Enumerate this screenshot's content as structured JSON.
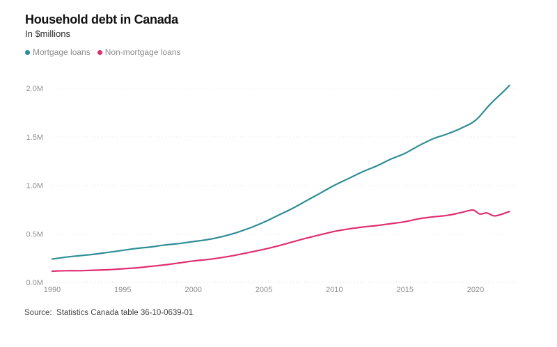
{
  "header": {
    "title": "Household debt in Canada",
    "subtitle": "In $millions"
  },
  "source": {
    "text": "Source:  Statistics Canada table 36-10-0639-01"
  },
  "chart_data": {
    "type": "line",
    "title": "Household debt in Canada",
    "subtitle": "In $millions",
    "ylabel": "$millions (shown as M)",
    "xlabel": "",
    "grid": "horizontal-dotted",
    "legend_position": "top-left",
    "xlim": [
      1989.8,
      2023.0
    ],
    "ylim": [
      0,
      2.15
    ],
    "x_ticks": [
      1990,
      1995,
      2000,
      2005,
      2010,
      2015,
      2020
    ],
    "y_tick_labels": [
      "0.0M",
      "0.5M",
      "1.0M",
      "1.5M",
      "2.0M"
    ],
    "y_tick_values": [
      0,
      0.5,
      1.0,
      1.5,
      2.0
    ],
    "axis_label_color": "#8f8f8f",
    "gridline_color": "#e7e7e3",
    "baseline_color": "#ddd4c6",
    "series": [
      {
        "name": "Mortgage loans",
        "color": "#2e8d96",
        "x": [
          1990,
          1991,
          1992,
          1993,
          1994,
          1995,
          1996,
          1997,
          1998,
          1999,
          2000,
          2001,
          2002,
          2003,
          2004,
          2005,
          2006,
          2007,
          2008,
          2009,
          2010,
          2011,
          2012,
          2013,
          2014,
          2015,
          2016,
          2017,
          2018,
          2019,
          2020,
          2021,
          2022,
          2022.4
        ],
        "values": [
          0.24,
          0.26,
          0.275,
          0.29,
          0.31,
          0.33,
          0.35,
          0.365,
          0.385,
          0.4,
          0.42,
          0.44,
          0.47,
          0.51,
          0.56,
          0.62,
          0.69,
          0.76,
          0.84,
          0.92,
          1.0,
          1.07,
          1.14,
          1.2,
          1.27,
          1.33,
          1.41,
          1.48,
          1.53,
          1.59,
          1.67,
          1.83,
          1.97,
          2.03
        ]
      },
      {
        "name": "Non-mortgage loans",
        "color": "#e02d71",
        "x": [
          1990,
          1991,
          1992,
          1993,
          1994,
          1995,
          1996,
          1997,
          1998,
          1999,
          2000,
          2001,
          2002,
          2003,
          2004,
          2005,
          2006,
          2007,
          2008,
          2009,
          2010,
          2011,
          2012,
          2013,
          2014,
          2015,
          2016,
          2017,
          2018,
          2019,
          2019.8,
          2020.3,
          2020.8,
          2021.3,
          2021.8,
          2022.4
        ],
        "values": [
          0.115,
          0.12,
          0.12,
          0.125,
          0.13,
          0.14,
          0.15,
          0.165,
          0.18,
          0.2,
          0.22,
          0.235,
          0.255,
          0.28,
          0.31,
          0.34,
          0.375,
          0.415,
          0.455,
          0.49,
          0.525,
          0.55,
          0.57,
          0.585,
          0.605,
          0.625,
          0.655,
          0.675,
          0.69,
          0.72,
          0.745,
          0.705,
          0.715,
          0.685,
          0.7,
          0.73
        ]
      }
    ]
  }
}
